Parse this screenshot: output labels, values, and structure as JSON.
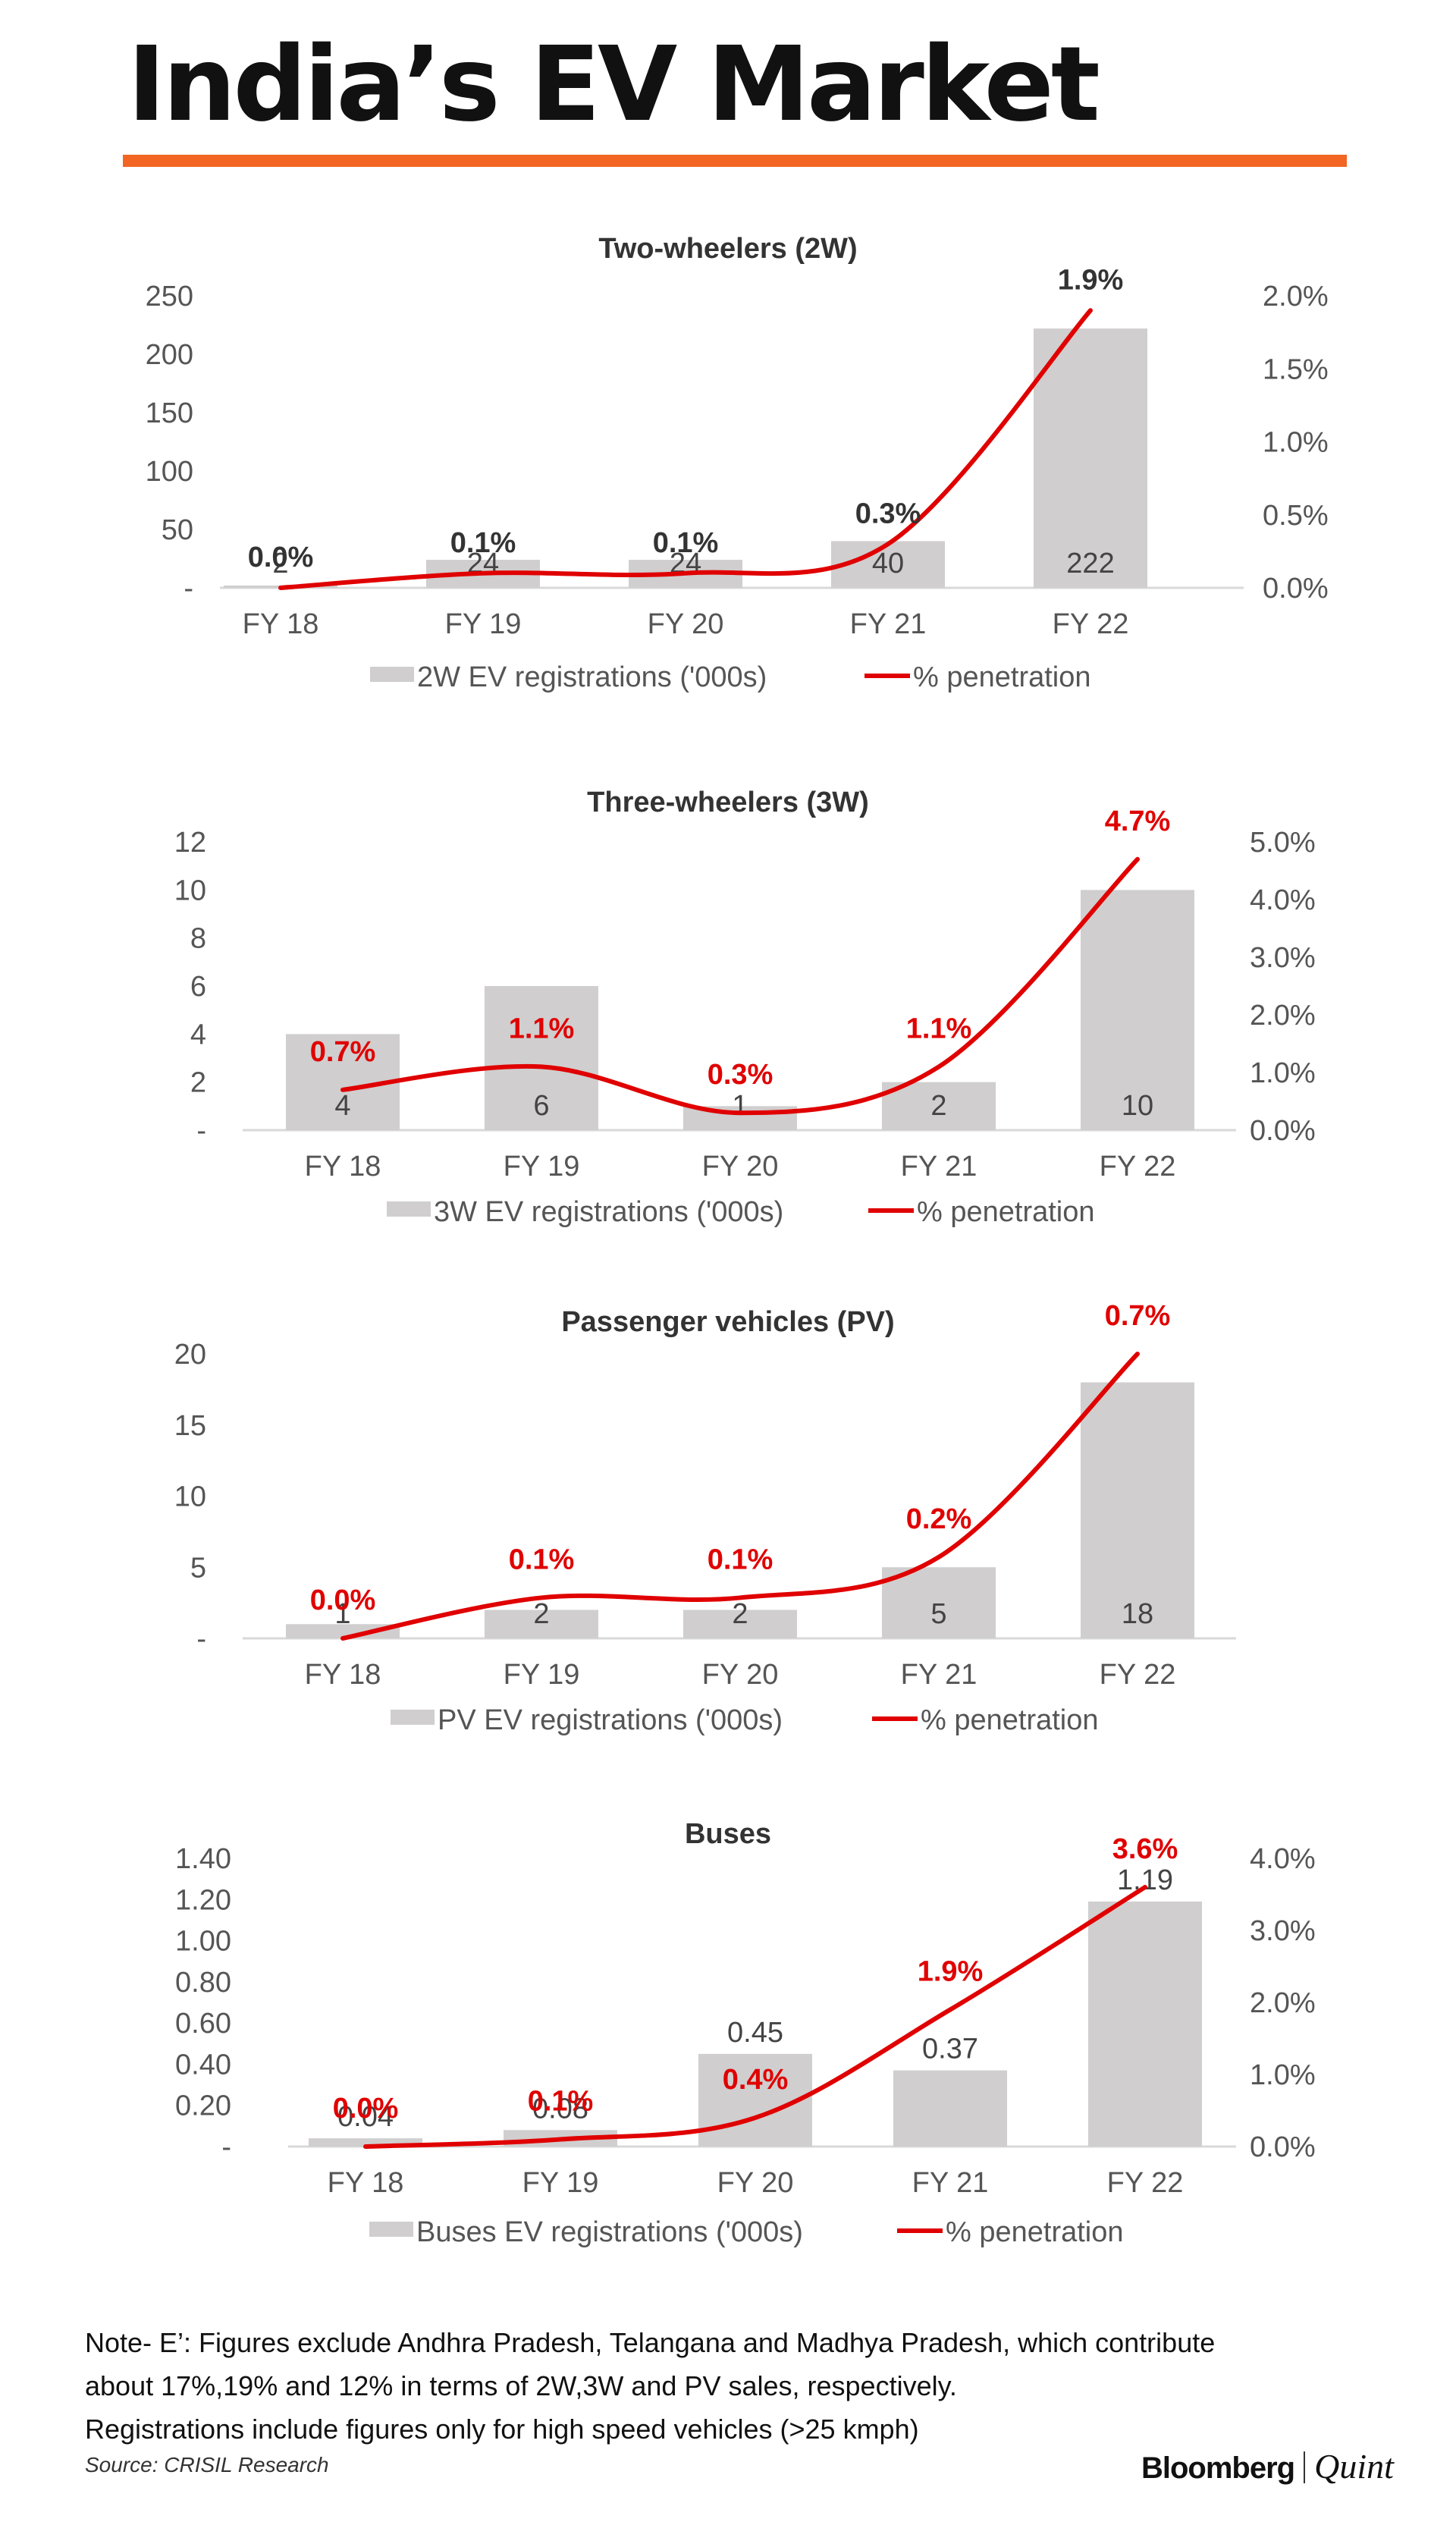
{
  "page": {
    "title": "India’s EV Market",
    "note": [
      "Note- E’: Figures exclude Andhra Pradesh, Telangana and Madhya Pradesh, which contribute",
      "about 17%,19% and 12% in terms of 2W,3W and PV sales, respectively.",
      "Registrations include figures only for high speed vehicles (>25 kmph)"
    ],
    "source": "Source: CRISIL Research",
    "brand": {
      "primary": "Bloomberg",
      "secondary": "Quint"
    },
    "accent_color": "#f26522"
  },
  "chart_data": [
    {
      "type": "bar",
      "title": "Two-wheelers (2W)",
      "categories": [
        "FY 18",
        "FY 19",
        "FY 20",
        "FY 21",
        "FY 22"
      ],
      "series": [
        {
          "name": "2W EV registrations ('000s)",
          "kind": "bar",
          "axis": "left",
          "values": [
            2,
            24,
            24,
            40,
            222
          ],
          "labels": [
            "2",
            "24",
            "24",
            "40",
            "222"
          ],
          "color": "#d0cece"
        },
        {
          "name": "% penetration",
          "kind": "line",
          "axis": "right",
          "values": [
            0.0,
            0.1,
            0.1,
            0.3,
            1.9
          ],
          "labels": [
            "0.0%",
            "0.1%",
            "0.1%",
            "0.3%",
            "1.9%"
          ],
          "color": "#e00000",
          "label_color": "#333333"
        }
      ],
      "ylim": [
        0,
        250
      ],
      "yticks": [
        "-",
        "50",
        "100",
        "150",
        "200",
        "250"
      ],
      "y2lim": [
        0,
        2.0
      ],
      "y2ticks": [
        "0.0%",
        "0.5%",
        "1.0%",
        "1.5%",
        "2.0%"
      ],
      "legend": "bottom",
      "grid": false
    },
    {
      "type": "bar",
      "title": "Three-wheelers (3W)",
      "categories": [
        "FY 18",
        "FY 19",
        "FY 20",
        "FY 21",
        "FY 22"
      ],
      "series": [
        {
          "name": "3W EV registrations  ('000s)",
          "kind": "bar",
          "axis": "left",
          "values": [
            4,
            6,
            1,
            2,
            10
          ],
          "labels": [
            "4",
            "6",
            "1",
            "2",
            "10"
          ],
          "color": "#d0cece"
        },
        {
          "name": "% penetration",
          "kind": "line",
          "axis": "right",
          "values": [
            0.7,
            1.1,
            0.3,
            1.1,
            4.7
          ],
          "labels": [
            "0.7%",
            "1.1%",
            "0.3%",
            "1.1%",
            "4.7%"
          ],
          "color": "#e00000",
          "label_color": "#e00000"
        }
      ],
      "ylim": [
        0,
        12
      ],
      "yticks": [
        "-",
        "2",
        "4",
        "6",
        "8",
        "10",
        "12"
      ],
      "y2lim": [
        0,
        5.0
      ],
      "y2ticks": [
        "0.0%",
        "1.0%",
        "2.0%",
        "3.0%",
        "4.0%",
        "5.0%"
      ],
      "legend": "bottom",
      "grid": false
    },
    {
      "type": "bar",
      "title": "Passenger vehicles (PV)",
      "categories": [
        "FY 18",
        "FY 19",
        "FY 20",
        "FY 21",
        "FY 22"
      ],
      "series": [
        {
          "name": "PV EV registrations  ('000s)",
          "kind": "bar",
          "axis": "left",
          "values": [
            1,
            2,
            2,
            5,
            18
          ],
          "labels": [
            "1",
            "2",
            "2",
            "5",
            "18"
          ],
          "color": "#d0cece"
        },
        {
          "name": "% penetration",
          "kind": "line",
          "axis": "right",
          "values": [
            0.0,
            0.1,
            0.1,
            0.2,
            0.7
          ],
          "labels": [
            "0.0%",
            "0.1%",
            "0.1%",
            "0.2%",
            "0.7%"
          ],
          "color": "#e00000",
          "label_color": "#e00000"
        }
      ],
      "ylim": [
        0,
        20
      ],
      "yticks": [
        "-",
        "5",
        "10",
        "15",
        "20"
      ],
      "y2lim": [
        0,
        0.7
      ],
      "y2ticks": [],
      "legend": "bottom",
      "grid": false
    },
    {
      "type": "bar",
      "title": "Buses",
      "categories": [
        "FY 18",
        "FY 19",
        "FY 20",
        "FY 21",
        "FY 22"
      ],
      "series": [
        {
          "name": "Buses EV registrations  ('000s)",
          "kind": "bar",
          "axis": "left",
          "values": [
            0.04,
            0.08,
            0.45,
            0.37,
            1.19
          ],
          "labels": [
            "0.04",
            "0.08",
            "0.45",
            "0.37",
            "1.19"
          ],
          "color": "#d0cece"
        },
        {
          "name": "% penetration",
          "kind": "line",
          "axis": "right",
          "values": [
            0.0,
            0.1,
            0.4,
            1.9,
            3.6
          ],
          "labels": [
            "0.0%",
            "0.1%",
            "0.4%",
            "1.9%",
            "3.6%"
          ],
          "color": "#e00000",
          "label_color": "#e00000"
        }
      ],
      "ylim": [
        0,
        1.4
      ],
      "yticks": [
        "-",
        "0.20",
        "0.40",
        "0.60",
        "0.80",
        "1.00",
        "1.20",
        "1.40"
      ],
      "y2lim": [
        0,
        4.0
      ],
      "y2ticks": [
        "0.0%",
        "1.0%",
        "2.0%",
        "3.0%",
        "4.0%"
      ],
      "legend": "bottom",
      "grid": false
    }
  ]
}
